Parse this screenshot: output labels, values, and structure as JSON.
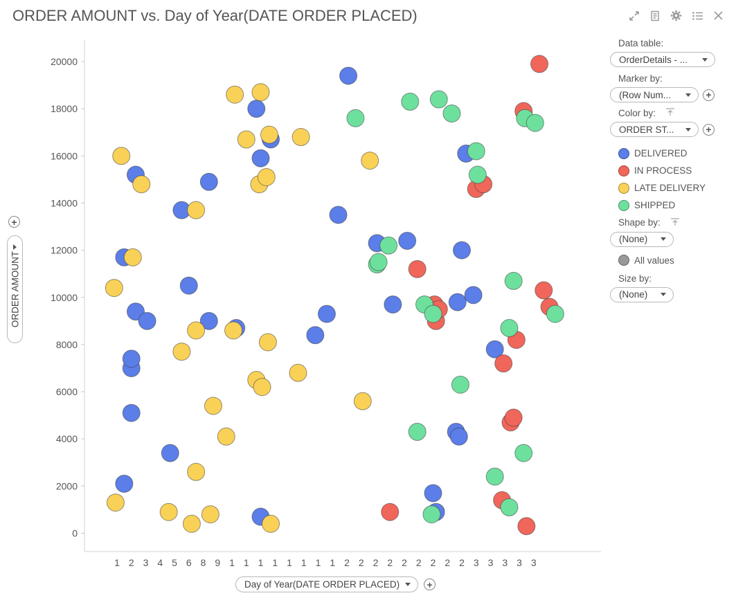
{
  "title": "ORDER AMOUNT vs. Day of Year(DATE ORDER PLACED)",
  "toolbar": {
    "icons": [
      "expand-icon",
      "details-icon",
      "gear-icon",
      "list-icon",
      "close-icon"
    ]
  },
  "panel": {
    "data_table_label": "Data table:",
    "data_table_value": "OrderDetails - ...",
    "marker_by_label": "Marker by:",
    "marker_by_value": "(Row Num...",
    "color_by_label": "Color by:",
    "color_by_value": "ORDER ST...",
    "legend": [
      {
        "label": "DELIVERED",
        "color": "#5b7ee8"
      },
      {
        "label": "IN PROCESS",
        "color": "#f0665a"
      },
      {
        "label": "LATE DELIVERY",
        "color": "#fad157"
      },
      {
        "label": "SHIPPED",
        "color": "#6ee09e"
      }
    ],
    "shape_by_label": "Shape by:",
    "shape_by_value": "(None)",
    "all_values_label": "All values",
    "all_values_color": "#999999",
    "size_by_label": "Size by:",
    "size_by_value": "(None)"
  },
  "x_axis_control": "Day of Year(DATE ORDER PLACED)",
  "y_axis_control": "ORDER AMOUNT",
  "chart_data": {
    "type": "scatter",
    "title": "ORDER AMOUNT vs. Day of Year(DATE ORDER PLACED)",
    "xlabel": "Day of Year(DATE ORDER PLACED)",
    "ylabel": "ORDER AMOUNT",
    "categories": [
      "1",
      "2",
      "3",
      "4",
      "5",
      "6",
      "8",
      "9",
      "1",
      "1",
      "1",
      "1",
      "1",
      "1",
      "1",
      "1",
      "2",
      "2",
      "2",
      "2",
      "2",
      "2",
      "2",
      "2",
      "2",
      "3",
      "3",
      "3",
      "3",
      "3"
    ],
    "ylim": [
      -700,
      21000
    ],
    "yticks": [
      0,
      2000,
      4000,
      6000,
      8000,
      10000,
      12000,
      14000,
      16000,
      18000,
      20000
    ],
    "grid": false,
    "legend_position": "right",
    "series": [
      {
        "name": "DELIVERED",
        "color": "#5b7ee8",
        "points": [
          [
            0.5,
            11700
          ],
          [
            0.5,
            2100
          ],
          [
            1.3,
            15200
          ],
          [
            1.3,
            9400
          ],
          [
            1.0,
            7000
          ],
          [
            1.0,
            7400
          ],
          [
            1.0,
            5100
          ],
          [
            2.1,
            9000
          ],
          [
            3.7,
            3400
          ],
          [
            4.5,
            13700
          ],
          [
            5.0,
            10500
          ],
          [
            6.4,
            14900
          ],
          [
            6.4,
            9000
          ],
          [
            8.3,
            8700
          ],
          [
            9.7,
            18000
          ],
          [
            10.0,
            15900
          ],
          [
            10.0,
            700
          ],
          [
            10.7,
            16700
          ],
          [
            13.8,
            8400
          ],
          [
            14.6,
            9300
          ],
          [
            15.4,
            13500
          ],
          [
            16.1,
            19400
          ],
          [
            18.1,
            12300
          ],
          [
            19.2,
            9700
          ],
          [
            20.2,
            12400
          ],
          [
            22.0,
            1700
          ],
          [
            22.2,
            900
          ],
          [
            23.6,
            4300
          ],
          [
            23.7,
            9800
          ],
          [
            23.8,
            4100
          ],
          [
            24.0,
            12000
          ],
          [
            24.3,
            16100
          ],
          [
            24.8,
            10100
          ],
          [
            26.3,
            7800
          ]
        ]
      },
      {
        "name": "IN PROCESS",
        "color": "#f0665a",
        "points": [
          [
            19.0,
            900
          ],
          [
            20.9,
            11200
          ],
          [
            22.1,
            9700
          ],
          [
            22.2,
            9000
          ],
          [
            22.4,
            9500
          ],
          [
            25.0,
            14600
          ],
          [
            25.5,
            14800
          ],
          [
            26.8,
            1400
          ],
          [
            26.9,
            7200
          ],
          [
            27.4,
            4700
          ],
          [
            27.6,
            4900
          ],
          [
            27.8,
            8200
          ],
          [
            28.3,
            17900
          ],
          [
            28.5,
            300
          ],
          [
            29.4,
            19900
          ],
          [
            29.7,
            10300
          ],
          [
            30.1,
            9600
          ]
        ]
      },
      {
        "name": "LATE DELIVERY",
        "color": "#fad157",
        "points": [
          [
            -0.2,
            10400
          ],
          [
            -0.1,
            1300
          ],
          [
            0.3,
            16000
          ],
          [
            1.1,
            11700
          ],
          [
            1.7,
            14800
          ],
          [
            3.6,
            900
          ],
          [
            4.5,
            7700
          ],
          [
            5.2,
            400
          ],
          [
            5.5,
            13700
          ],
          [
            5.5,
            8600
          ],
          [
            5.5,
            2600
          ],
          [
            6.5,
            800
          ],
          [
            6.7,
            5400
          ],
          [
            7.6,
            4100
          ],
          [
            8.1,
            8600
          ],
          [
            8.2,
            18600
          ],
          [
            9.0,
            16700
          ],
          [
            9.7,
            6500
          ],
          [
            9.9,
            14800
          ],
          [
            10.0,
            18700
          ],
          [
            10.1,
            6200
          ],
          [
            10.4,
            15100
          ],
          [
            10.5,
            8100
          ],
          [
            10.6,
            16900
          ],
          [
            10.7,
            400
          ],
          [
            12.6,
            6800
          ],
          [
            12.8,
            16800
          ],
          [
            17.1,
            5600
          ],
          [
            17.6,
            15800
          ]
        ]
      },
      {
        "name": "SHIPPED",
        "color": "#6ee09e",
        "points": [
          [
            16.6,
            17600
          ],
          [
            18.1,
            11400
          ],
          [
            18.2,
            11500
          ],
          [
            18.9,
            12200
          ],
          [
            20.4,
            18300
          ],
          [
            20.9,
            4300
          ],
          [
            21.4,
            9700
          ],
          [
            21.9,
            800
          ],
          [
            22.0,
            9300
          ],
          [
            22.4,
            18400
          ],
          [
            23.3,
            17800
          ],
          [
            23.9,
            6300
          ],
          [
            25.0,
            16200
          ],
          [
            25.1,
            15200
          ],
          [
            26.3,
            2400
          ],
          [
            27.3,
            1100
          ],
          [
            27.3,
            8700
          ],
          [
            27.6,
            10700
          ],
          [
            28.3,
            3400
          ],
          [
            28.4,
            17600
          ],
          [
            29.1,
            17400
          ],
          [
            30.5,
            9300
          ]
        ]
      }
    ]
  }
}
